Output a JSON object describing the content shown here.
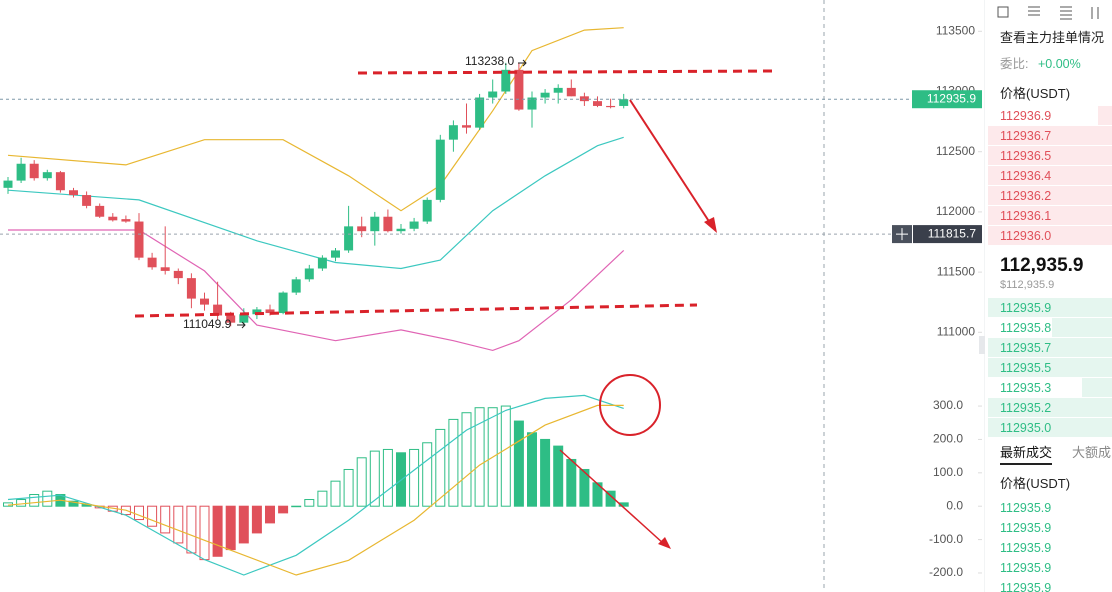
{
  "chart_data": [
    {
      "type": "candlestick",
      "open": [
        112200,
        112260,
        112400,
        112280,
        112330,
        112180,
        112140,
        112050,
        111960,
        111940,
        111920,
        111620,
        111540,
        111510,
        111450,
        111280,
        111230,
        111140,
        111080,
        111150,
        111190,
        111160,
        111330,
        111440,
        111530,
        111620,
        111680,
        111880,
        111840,
        111960,
        111840,
        111860,
        111920,
        112100,
        112600,
        112720,
        112700,
        112950,
        113000,
        113180,
        112850,
        112950,
        112990,
        113030,
        112960,
        112920,
        112880,
        112880
      ],
      "high": [
        112290,
        112450,
        112430,
        112350,
        112340,
        112200,
        112170,
        112070,
        111990,
        111970,
        111990,
        111660,
        111880,
        111530,
        111490,
        111330,
        111420,
        111170,
        111200,
        111210,
        111230,
        111340,
        111460,
        111560,
        111640,
        111700,
        112050,
        111960,
        112000,
        112020,
        111900,
        111950,
        112120,
        112640,
        112760,
        112900,
        112980,
        113100,
        113238,
        113238,
        113000,
        113020,
        113060,
        113100,
        112990,
        112960,
        112940,
        112980
      ],
      "low": [
        112150,
        112240,
        112260,
        112260,
        112160,
        112120,
        112030,
        111950,
        111920,
        111910,
        111600,
        111520,
        111480,
        111400,
        111200,
        111180,
        111100,
        111049.9,
        111060,
        111110,
        111140,
        111150,
        111310,
        111420,
        111510,
        111590,
        111660,
        111790,
        111720,
        111830,
        111820,
        111840,
        111900,
        112080,
        112500,
        112650,
        112680,
        112900,
        112980,
        112840,
        112700,
        112900,
        112900,
        112960,
        112880,
        112870,
        112860,
        112860
      ],
      "close": [
        112260,
        112400,
        112280,
        112330,
        112180,
        112140,
        112050,
        111960,
        111930,
        111920,
        111620,
        111540,
        111510,
        111450,
        111280,
        111230,
        111140,
        111080,
        111150,
        111190,
        111160,
        111330,
        111440,
        111530,
        111620,
        111680,
        111880,
        111840,
        111960,
        111840,
        111860,
        111920,
        112100,
        112600,
        112720,
        112700,
        112950,
        113000,
        113180,
        112850,
        112950,
        112990,
        113030,
        112960,
        112920,
        112880,
        112870,
        112935.9
      ],
      "up_color": "#2ebd85",
      "down_color": "#e0505a",
      "lines": [
        {
          "color": "#e8b731",
          "x": [
            0,
            9,
            15,
            21,
            26,
            30,
            33,
            37,
            40,
            44,
            47
          ],
          "values": [
            112470,
            112390,
            112600,
            112600,
            112300,
            112010,
            112220,
            112840,
            113340,
            113510,
            113530
          ]
        },
        {
          "color": "#3cc8c0",
          "x": [
            0,
            10,
            19,
            25,
            30,
            33,
            37,
            41,
            45,
            47
          ],
          "values": [
            112180,
            112100,
            111760,
            111580,
            111530,
            111600,
            112010,
            112300,
            112550,
            112620
          ]
        },
        {
          "color": "#e064b4",
          "x": [
            0,
            10,
            15,
            19,
            25,
            30,
            34,
            37,
            39,
            43,
            47
          ],
          "values": [
            111850,
            111850,
            111510,
            111060,
            110930,
            111020,
            110930,
            110850,
            110930,
            111270,
            111680
          ]
        }
      ],
      "ylim": [
        110770,
        113760
      ],
      "yticks": [
        111000,
        111500,
        112000,
        112500,
        113000,
        113500
      ],
      "last_price": 112935.9,
      "crosshair_price": 111815.7,
      "annotations": [
        "113238.0",
        "111049.9"
      ]
    },
    {
      "type": "macd",
      "values": [
        10,
        20,
        35,
        45,
        35,
        15,
        5,
        -5,
        -15,
        -25,
        -40,
        -60,
        -80,
        -110,
        -140,
        -160,
        -150,
        -130,
        -110,
        -80,
        -50,
        -20,
        0,
        20,
        45,
        75,
        110,
        145,
        165,
        170,
        160,
        170,
        190,
        230,
        260,
        280,
        295,
        295,
        300,
        255,
        220,
        200,
        180,
        140,
        110,
        70,
        45,
        10
      ],
      "up_color": "#2ebd85",
      "down_color": "#e0505a",
      "lines": [
        {
          "color": "#3cc8c0",
          "x": [
            0,
            4,
            9,
            15,
            18,
            22,
            26,
            31,
            35,
            38,
            41,
            44,
            47
          ],
          "values": [
            20,
            33,
            -27,
            -160,
            -206,
            -147,
            -42,
            108,
            228,
            287,
            323,
            332,
            293
          ]
        },
        {
          "color": "#e8b731",
          "x": [
            0,
            4,
            9,
            15,
            22,
            26,
            31,
            36,
            41,
            45,
            47
          ],
          "values": [
            3,
            18,
            -12,
            -102,
            -206,
            -162,
            -42,
            123,
            243,
            302,
            302
          ]
        }
      ],
      "ylim": [
        -257,
        393
      ],
      "yticks": [
        {
          "value": 300,
          "label": "300.0"
        },
        {
          "value": 200,
          "label": "200.0"
        },
        {
          "value": 100,
          "label": "100.0"
        },
        {
          "value": 0,
          "label": "0.0"
        },
        {
          "value": -100,
          "label": "-100.0"
        },
        {
          "value": -200,
          "label": "-200.0"
        }
      ]
    }
  ],
  "order_book": {
    "title": "查看主力挂单情况",
    "ratio_label": "委比:",
    "ratio": "+0.00%",
    "price_header": "价格(USDT)",
    "asks": [
      "112936.9",
      "112936.7",
      "112936.5",
      "112936.4",
      "112936.2",
      "112936.1",
      "112936.0"
    ],
    "last": "112,935.9",
    "last_usd": "$112,935.9",
    "bids": [
      "112935.9",
      "112935.8",
      "112935.7",
      "112935.5",
      "112935.3",
      "112935.2",
      "112935.0"
    ]
  },
  "trades": {
    "tabs": [
      "最新成交",
      "大额成"
    ],
    "price_header": "价格(USDT)",
    "prices": [
      "112935.9",
      "112935.9",
      "112935.9",
      "112935.9",
      "112935.9"
    ]
  }
}
